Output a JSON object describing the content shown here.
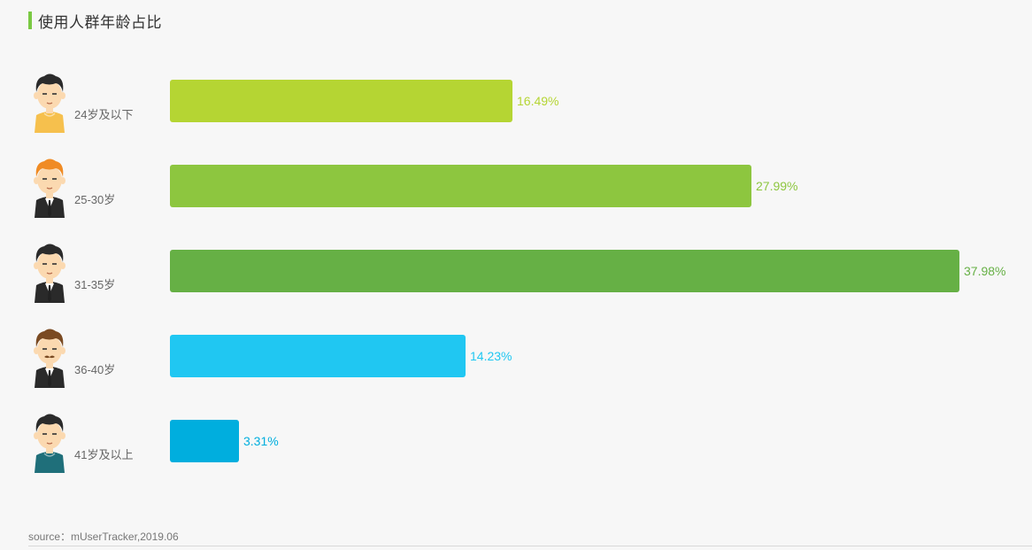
{
  "header": {
    "title": "使用人群年龄占比"
  },
  "source": "source：mUserTracker,2019.06",
  "chart_data": {
    "type": "bar",
    "orientation": "horizontal",
    "title": "使用人群年龄占比",
    "categories": [
      "24岁及以下",
      "25-30岁",
      "31-35岁",
      "36-40岁",
      "41岁及以上"
    ],
    "values": [
      16.49,
      27.99,
      37.98,
      14.23,
      3.31
    ],
    "value_labels": [
      "16.49%",
      "27.99%",
      "37.98%",
      "14.23%",
      "3.31%"
    ],
    "unit": "%",
    "xlim": [
      0,
      37.98
    ],
    "colors": [
      "#b5d533",
      "#8dc63f",
      "#66b045",
      "#20c7f2",
      "#00aede"
    ],
    "label_colors": [
      "#b5d533",
      "#8dc63f",
      "#66b045",
      "#20c7f2",
      "#00aede"
    ],
    "avatars": [
      "young-man-yellow-shirt-icon",
      "man-orange-hair-suit-icon",
      "man-black-hair-suit-icon",
      "man-mustache-suit-icon",
      "man-teal-shirt-icon"
    ],
    "grid": false,
    "legend": "none"
  }
}
